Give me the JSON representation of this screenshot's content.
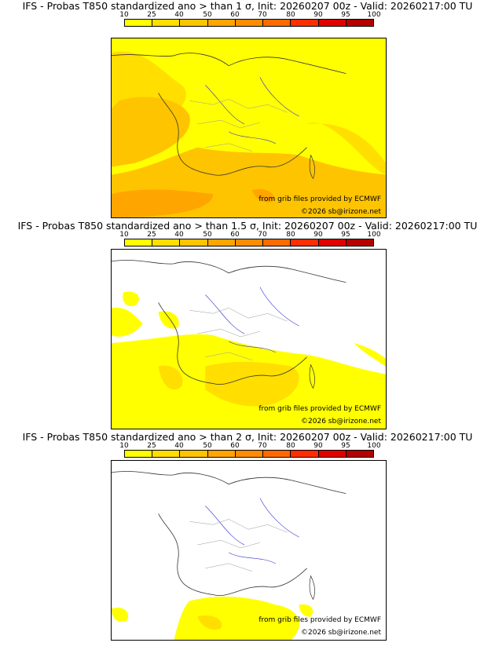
{
  "colorbar": {
    "ticks": [
      "10",
      "25",
      "40",
      "50",
      "60",
      "70",
      "80",
      "90",
      "95",
      "100"
    ],
    "colors": [
      "#ffff00",
      "#ffde00",
      "#ffc400",
      "#ffa500",
      "#ff8c00",
      "#ff6a00",
      "#ff2e00",
      "#e00000",
      "#b40000",
      "#7a0000"
    ]
  },
  "panels": [
    {
      "title": "IFS - Probas T850  standardized ano > than 1 σ, Init: 20260207 00z - Valid: 20260217:00 TU",
      "credit_line1": "from grib files provided by ECMWF",
      "credit_line2": "©2026 sb@irizone.net",
      "probability_coverage": "high"
    },
    {
      "title": "IFS - Probas T850  standardized ano > than 1.5 σ, Init: 20260207 00z - Valid: 20260217:00 TU",
      "credit_line1": "from grib files provided by ECMWF",
      "credit_line2": "©2026 sb@irizone.net",
      "probability_coverage": "medium"
    },
    {
      "title": "IFS - Probas T850  standardized ano > than 2 σ, Init: 20260207 00z - Valid: 20260217:00 TU",
      "credit_line1": "from grib files provided by ECMWF",
      "credit_line2": "©2026 sb@irizone.net",
      "probability_coverage": "low"
    }
  ]
}
